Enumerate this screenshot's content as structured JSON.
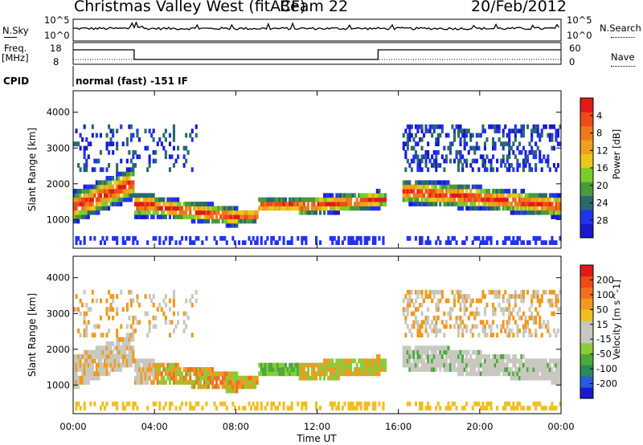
{
  "header": {
    "title": "Christmas Valley West (fitACF)",
    "beam": "Beam 22",
    "date": "20/Feb/2012"
  },
  "strip": {
    "nsky_label": "N.Sky",
    "nsky_top": "10^5",
    "nsky_bottom": "10^0",
    "nsearch_label": "N.Search",
    "nsearch_top": "10^5",
    "nsearch_bottom": "10^0",
    "freq_label": "Freq.",
    "freq_unit": "[MHz]",
    "freq_top": "18",
    "freq_bottom": "8",
    "nave_label": "Nave",
    "nave_top": "60",
    "nave_bottom": "0",
    "cpid_label": "CPID",
    "cpid_text": "normal (fast) -151 IF"
  },
  "chart_data": [
    {
      "type": "heatmap",
      "name": "power-panel",
      "ylabel": "Slant Range [km]",
      "ylim": [
        200,
        4600
      ],
      "yticks": [
        1000,
        2000,
        3000,
        4000
      ],
      "xlim": [
        0,
        24
      ],
      "colorbar": {
        "label": "Power [dB]",
        "ticks": [
          "4",
          "8",
          "12",
          "16",
          "20",
          "24",
          "28"
        ],
        "colors": [
          "#1a1acc",
          "#2233ee",
          "#2a6a6a",
          "#4a9a3a",
          "#7acc2a",
          "#e8c81a",
          "#f0a01a",
          "#f07a1a",
          "#ee4a1a",
          "#e01a1a"
        ]
      }
    },
    {
      "type": "heatmap",
      "name": "velocity-panel",
      "ylabel": "Slant Range [km]",
      "ylim": [
        200,
        4600
      ],
      "yticks": [
        1000,
        2000,
        3000,
        4000
      ],
      "xlim": [
        0,
        24
      ],
      "colorbar": {
        "label": "Velocity [m s^-1]",
        "ticks": [
          "200",
          "100",
          "50",
          "15",
          "-15",
          "-50",
          "-100",
          "-200"
        ],
        "colors": [
          "#1a1acc",
          "#2a5add",
          "#2a8a5a",
          "#4aaa3a",
          "#8acc3a",
          "#c8c8c0",
          "#c8c8c0",
          "#f0c020",
          "#f09a20",
          "#f07020",
          "#ee4a1a",
          "#e01a1a"
        ]
      }
    }
  ],
  "xaxis": {
    "label": "Time UT",
    "ticks": [
      "00:00",
      "04:00",
      "08:00",
      "12:00",
      "16:00",
      "20:00",
      "00:00"
    ]
  }
}
